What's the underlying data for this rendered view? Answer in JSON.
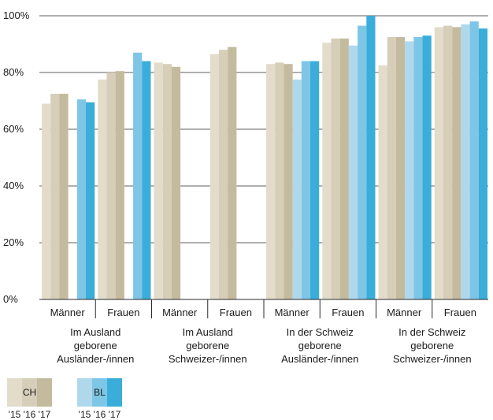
{
  "chart_data": {
    "type": "bar",
    "y_ticks": [
      "0%",
      "20%",
      "40%",
      "60%",
      "80%",
      "100%"
    ],
    "ylim": [
      0,
      100
    ],
    "grid": true,
    "subgroups": [
      "Männer",
      "Frauen",
      "Männer",
      "Frauen",
      "Männer",
      "Frauen",
      "Männer",
      "Frauen"
    ],
    "groups": [
      [
        "Im Ausland",
        "geborene",
        "Ausländer-/innen"
      ],
      [
        "Im Ausland",
        "geborene",
        "Schweizer-/innen"
      ],
      [
        "In der Schweiz",
        "geborene",
        "Ausländer-/innen"
      ],
      [
        "In der Schweiz",
        "geborene",
        "Schweizer-/innen"
      ]
    ],
    "series": [
      {
        "region": "CH",
        "year": "'15",
        "color": "#e3dccb",
        "values": [
          69,
          77.5,
          83.5,
          86.5,
          83,
          90.5,
          82.5,
          96
        ]
      },
      {
        "region": "CH",
        "year": "'16",
        "color": "#d6ceb8",
        "values": [
          72.5,
          80,
          83,
          88,
          83.5,
          92,
          92.5,
          96.5
        ]
      },
      {
        "region": "CH",
        "year": "'17",
        "color": "#c4bb9f",
        "values": [
          72.5,
          80.5,
          82,
          89,
          83,
          92,
          92.5,
          96
        ]
      },
      {
        "region": "BL",
        "year": "'15",
        "color": "#b0d8ec",
        "values": [
          null,
          null,
          null,
          null,
          77.5,
          89.5,
          91,
          97
        ]
      },
      {
        "region": "BL",
        "year": "'16",
        "color": "#7ec6e6",
        "values": [
          70.5,
          87,
          null,
          null,
          84,
          96.5,
          92.5,
          98
        ]
      },
      {
        "region": "BL",
        "year": "'17",
        "color": "#3badda",
        "values": [
          69.5,
          84,
          null,
          null,
          84,
          100,
          93,
          95.5
        ]
      }
    ],
    "legend": {
      "ch_label": "CH",
      "bl_label": "BL",
      "years": [
        "'15",
        "'16",
        "'17"
      ]
    }
  }
}
